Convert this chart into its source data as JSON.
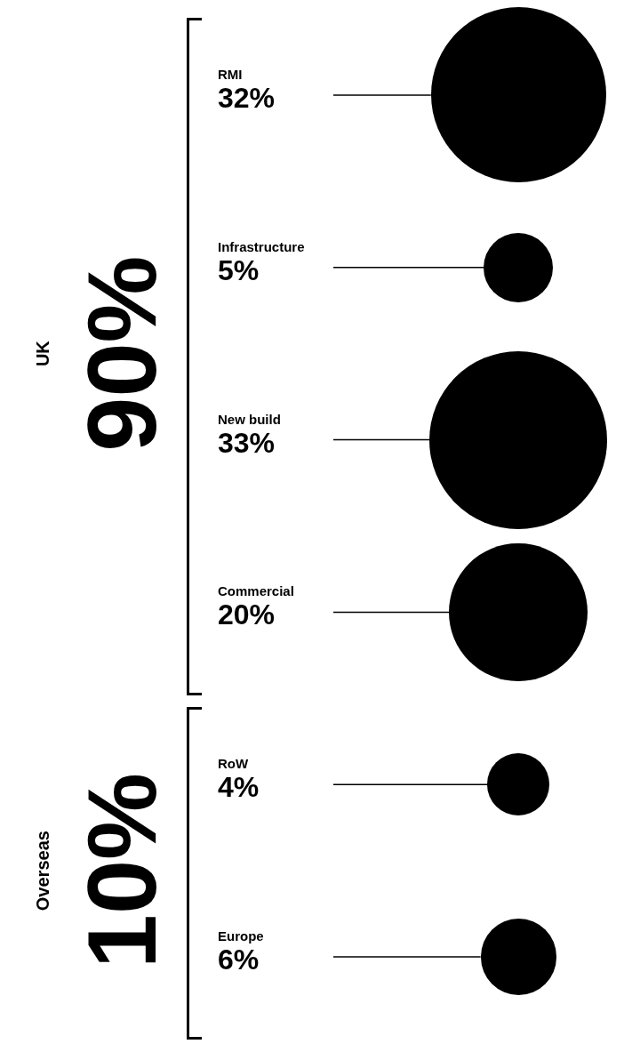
{
  "chart_data": {
    "type": "other",
    "categories": [
      "RMI",
      "Infrastructure",
      "New build",
      "Commercial",
      "RoW",
      "Europe"
    ],
    "values": [
      32,
      5,
      33,
      20,
      4,
      6
    ],
    "value_labels": [
      "32%",
      "5%",
      "33%",
      "20%",
      "4%",
      "6%"
    ],
    "color": "#000000",
    "annotations": [
      "UK",
      "90%",
      "Overseas",
      "10%"
    ],
    "legend": false
  }
}
